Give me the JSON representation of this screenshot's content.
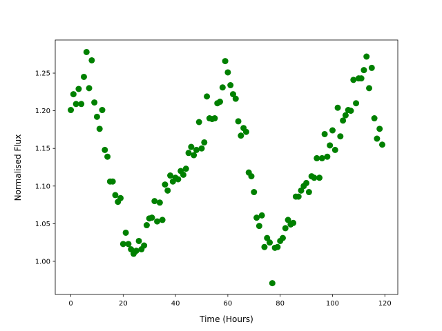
{
  "chart_data": {
    "type": "scatter",
    "xlabel": "Time (Hours)",
    "ylabel": "Normalised Flux",
    "color": "#008000",
    "x": [
      0,
      1,
      2,
      3,
      4,
      5,
      6,
      7,
      8,
      9,
      10,
      11,
      12,
      13,
      14,
      15,
      16,
      17,
      18,
      19,
      20,
      21,
      22,
      23,
      24,
      25,
      26,
      27,
      28,
      29,
      30,
      31,
      32,
      33,
      34,
      35,
      36,
      37,
      38,
      39,
      40,
      41,
      42,
      43,
      44,
      45,
      46,
      47,
      48,
      49,
      50,
      51,
      52,
      53,
      54,
      55,
      56,
      57,
      58,
      59,
      60,
      61,
      62,
      63,
      64,
      65,
      66,
      67,
      68,
      69,
      70,
      71,
      72,
      73,
      74,
      75,
      76,
      77,
      78,
      79,
      80,
      81,
      82,
      83,
      84,
      85,
      86,
      87,
      88,
      89,
      90,
      91,
      92,
      93,
      94,
      95,
      96,
      97,
      98,
      99,
      100,
      101,
      102,
      103,
      104,
      105,
      106,
      107,
      108,
      109,
      110,
      111,
      112,
      113,
      114,
      115,
      116,
      117,
      118,
      119
    ],
    "values": [
      1.201,
      1.222,
      1.209,
      1.229,
      1.209,
      1.245,
      1.278,
      1.23,
      1.267,
      1.211,
      1.192,
      1.176,
      1.201,
      1.148,
      1.139,
      1.106,
      1.106,
      1.088,
      1.079,
      1.084,
      1.023,
      1.038,
      1.023,
      1.016,
      1.01,
      1.014,
      1.027,
      1.016,
      1.021,
      1.048,
      1.057,
      1.058,
      1.08,
      1.053,
      1.078,
      1.055,
      1.102,
      1.094,
      1.114,
      1.106,
      1.111,
      1.109,
      1.12,
      1.115,
      1.123,
      1.144,
      1.152,
      1.141,
      1.148,
      1.185,
      1.15,
      1.158,
      1.219,
      1.19,
      1.189,
      1.19,
      1.21,
      1.212,
      1.231,
      1.266,
      1.251,
      1.234,
      1.222,
      1.216,
      1.186,
      1.167,
      1.177,
      1.172,
      1.118,
      1.113,
      1.092,
      1.058,
      1.047,
      1.061,
      1.019,
      1.031,
      1.025,
      0.971,
      1.018,
      1.019,
      1.027,
      1.031,
      1.044,
      1.055,
      1.049,
      1.051,
      1.086,
      1.086,
      1.094,
      1.1,
      1.104,
      1.092,
      1.113,
      1.111,
      1.137,
      1.111,
      1.137,
      1.169,
      1.139,
      1.154,
      1.174,
      1.148,
      1.204,
      1.166,
      1.187,
      1.194,
      1.201,
      1.2,
      1.241,
      1.21,
      1.243,
      1.243,
      1.254,
      1.272,
      1.23,
      1.257,
      1.19,
      1.163,
      1.176,
      1.155
    ],
    "xlim": [
      -5.95,
      124.95
    ],
    "ylim": [
      0.956,
      1.294
    ],
    "xticks": [
      0,
      20,
      40,
      60,
      80,
      100,
      120
    ],
    "yticks": [
      {
        "value": 1.0,
        "label": "1.00"
      },
      1.05,
      {
        "value": 1.1,
        "label": "1.10"
      },
      1.15,
      {
        "value": 1.2,
        "label": "1.20"
      },
      1.25
    ]
  }
}
